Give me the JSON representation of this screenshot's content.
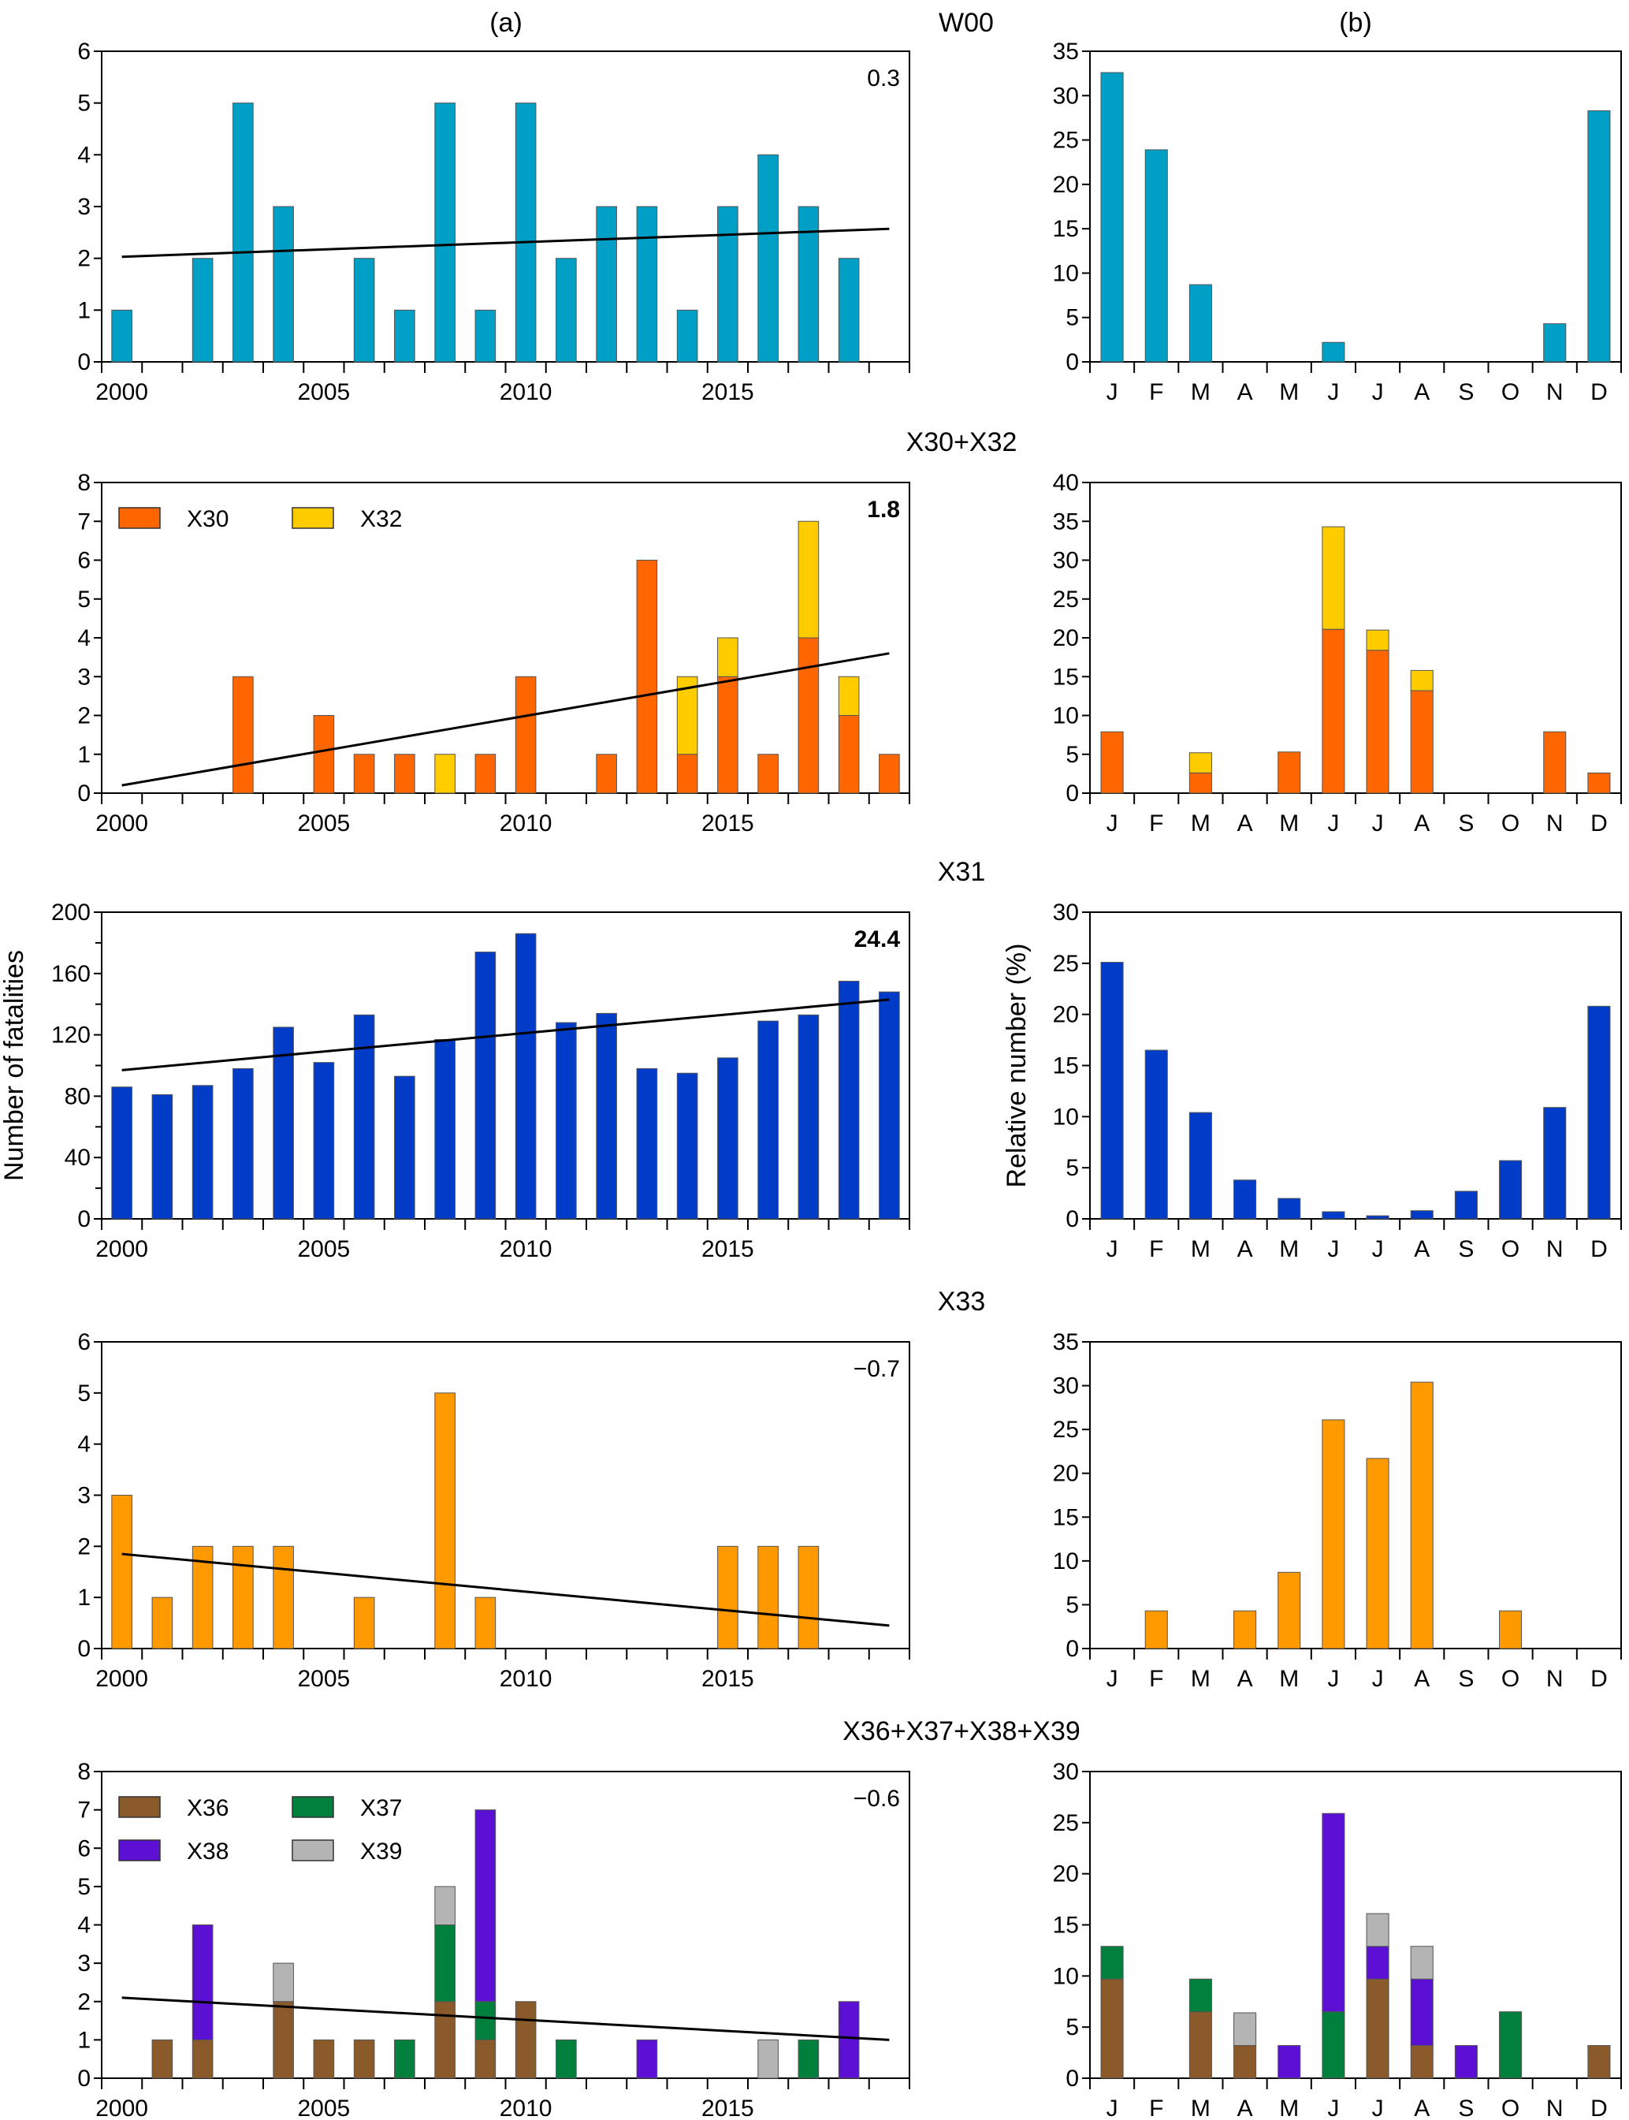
{
  "column_labels": {
    "left": "(a)",
    "right": "(b)"
  },
  "y_labels": {
    "left": "Number of fatalities",
    "right": "Relative number (%)"
  },
  "colors": {
    "W00": "#00A0C6",
    "X30": "#FF6600",
    "X32": "#FFCC00",
    "X31": "#003CC8",
    "X33": "#FF9900",
    "X36": "#8B5A2B",
    "X37": "#00803C",
    "X38": "#5C10D4",
    "X39": "#B4B4B4",
    "trend": "#000000"
  },
  "chart_data": [
    {
      "id": "W00-annual",
      "group": "W00",
      "type": "bar",
      "panel": "a",
      "title": "W00",
      "trend_label": "0.3",
      "trend_bold": false,
      "xlabel": "",
      "ylabel": "",
      "x": [
        2000,
        2001,
        2002,
        2003,
        2004,
        2005,
        2006,
        2007,
        2008,
        2009,
        2010,
        2011,
        2012,
        2013,
        2014,
        2015,
        2016,
        2017,
        2018,
        2019
      ],
      "x_ticks": [
        "2000",
        "2005",
        "2010",
        "2015"
      ],
      "ylim": [
        0,
        6
      ],
      "y_ticks": [
        0,
        1,
        2,
        3,
        4,
        5,
        6
      ],
      "series": [
        {
          "name": "W00",
          "values": [
            1,
            0,
            2,
            5,
            3,
            0,
            2,
            1,
            5,
            1,
            5,
            2,
            3,
            3,
            1,
            3,
            4,
            3,
            2,
            0
          ]
        }
      ],
      "trend": {
        "start": 2.03,
        "end": 2.57
      },
      "legend": null
    },
    {
      "id": "W00-monthly",
      "group": "W00",
      "type": "bar",
      "panel": "b",
      "categories": [
        "J",
        "F",
        "M",
        "A",
        "M",
        "J",
        "J",
        "A",
        "S",
        "O",
        "N",
        "D"
      ],
      "ylim": [
        0,
        35
      ],
      "y_ticks": [
        0,
        5,
        10,
        15,
        20,
        25,
        30,
        35
      ],
      "series": [
        {
          "name": "W00",
          "values": [
            32.6,
            23.9,
            8.7,
            0,
            0,
            2.2,
            0,
            0,
            0,
            0,
            4.3,
            28.3
          ]
        }
      ]
    },
    {
      "id": "X30X32-annual",
      "group": "X30+X32",
      "type": "bar",
      "stacked": true,
      "panel": "a",
      "title": "X30+X32",
      "trend_label": "1.8",
      "trend_bold": true,
      "x": [
        2000,
        2001,
        2002,
        2003,
        2004,
        2005,
        2006,
        2007,
        2008,
        2009,
        2010,
        2011,
        2012,
        2013,
        2014,
        2015,
        2016,
        2017,
        2018,
        2019
      ],
      "x_ticks": [
        "2000",
        "2005",
        "2010",
        "2015"
      ],
      "ylim": [
        0,
        8
      ],
      "y_ticks": [
        0,
        1,
        2,
        3,
        4,
        5,
        6,
        7,
        8
      ],
      "series": [
        {
          "name": "X30",
          "values": [
            0,
            0,
            0,
            3,
            0,
            2,
            1,
            1,
            0,
            1,
            3,
            0,
            1,
            6,
            1,
            3,
            1,
            4,
            2,
            1
          ]
        },
        {
          "name": "X32",
          "values": [
            0,
            0,
            0,
            0,
            0,
            0,
            0,
            0,
            1,
            0,
            0,
            0,
            0,
            0,
            2,
            1,
            0,
            3,
            1,
            0
          ]
        }
      ],
      "trend": {
        "start": 0.2,
        "end": 3.6
      },
      "legend": {
        "placement": "top-left",
        "entries": [
          "X30",
          "X32"
        ]
      }
    },
    {
      "id": "X30X32-monthly",
      "group": "X30+X32",
      "type": "bar",
      "stacked": true,
      "panel": "b",
      "categories": [
        "J",
        "F",
        "M",
        "A",
        "M",
        "J",
        "J",
        "A",
        "S",
        "O",
        "N",
        "D"
      ],
      "ylim": [
        0,
        40
      ],
      "y_ticks": [
        0,
        5,
        10,
        15,
        20,
        25,
        30,
        35,
        40
      ],
      "series": [
        {
          "name": "X30",
          "values": [
            7.9,
            0,
            2.6,
            0,
            5.3,
            21.1,
            18.4,
            13.2,
            0,
            0,
            7.9,
            2.6
          ]
        },
        {
          "name": "X32",
          "values": [
            0,
            0,
            2.6,
            0,
            0,
            13.2,
            2.6,
            2.6,
            0,
            0,
            0,
            0
          ]
        }
      ]
    },
    {
      "id": "X31-annual",
      "group": "X31",
      "type": "bar",
      "panel": "a",
      "title": "X31",
      "trend_label": "24.4",
      "trend_bold": true,
      "ylabel": "Number of fatalities",
      "x": [
        2000,
        2001,
        2002,
        2003,
        2004,
        2005,
        2006,
        2007,
        2008,
        2009,
        2010,
        2011,
        2012,
        2013,
        2014,
        2015,
        2016,
        2017,
        2018,
        2019
      ],
      "x_ticks": [
        "2000",
        "2005",
        "2010",
        "2015"
      ],
      "ylim": [
        0,
        200
      ],
      "y_ticks": [
        0,
        40,
        80,
        120,
        160,
        200
      ],
      "minor_step": 20,
      "series": [
        {
          "name": "X31",
          "values": [
            86,
            81,
            87,
            98,
            125,
            102,
            133,
            93,
            117,
            174,
            186,
            128,
            134,
            98,
            95,
            105,
            129,
            133,
            155,
            148
          ]
        }
      ],
      "trend": {
        "start": 97,
        "end": 143
      },
      "legend": null
    },
    {
      "id": "X31-monthly",
      "group": "X31",
      "type": "bar",
      "panel": "b",
      "ylabel": "Relative number (%)",
      "categories": [
        "J",
        "F",
        "M",
        "A",
        "M",
        "J",
        "J",
        "A",
        "S",
        "O",
        "N",
        "D"
      ],
      "ylim": [
        0,
        30
      ],
      "y_ticks": [
        0,
        5,
        10,
        15,
        20,
        25,
        30
      ],
      "series": [
        {
          "name": "X31",
          "values": [
            25.1,
            16.5,
            10.4,
            3.8,
            2.0,
            0.7,
            0.3,
            0.8,
            2.7,
            5.7,
            10.9,
            20.8
          ]
        }
      ]
    },
    {
      "id": "X33-annual",
      "group": "X33",
      "type": "bar",
      "panel": "a",
      "title": "X33",
      "trend_label": "−0.7",
      "trend_bold": false,
      "x": [
        2000,
        2001,
        2002,
        2003,
        2004,
        2005,
        2006,
        2007,
        2008,
        2009,
        2010,
        2011,
        2012,
        2013,
        2014,
        2015,
        2016,
        2017,
        2018,
        2019
      ],
      "x_ticks": [
        "2000",
        "2005",
        "2010",
        "2015"
      ],
      "ylim": [
        0,
        6
      ],
      "y_ticks": [
        0,
        1,
        2,
        3,
        4,
        5,
        6
      ],
      "series": [
        {
          "name": "X33",
          "values": [
            3,
            1,
            2,
            2,
            2,
            0,
            1,
            0,
            5,
            1,
            0,
            0,
            0,
            0,
            0,
            2,
            2,
            2,
            0,
            0
          ]
        }
      ],
      "trend": {
        "start": 1.85,
        "end": 0.45
      },
      "legend": null
    },
    {
      "id": "X33-monthly",
      "group": "X33",
      "type": "bar",
      "panel": "b",
      "categories": [
        "J",
        "F",
        "M",
        "A",
        "M",
        "J",
        "J",
        "A",
        "S",
        "O",
        "N",
        "D"
      ],
      "ylim": [
        0,
        35
      ],
      "y_ticks": [
        0,
        5,
        10,
        15,
        20,
        25,
        30,
        35
      ],
      "series": [
        {
          "name": "X33",
          "values": [
            0,
            4.3,
            0,
            4.3,
            8.7,
            26.1,
            21.7,
            30.4,
            0,
            4.3,
            0,
            0
          ]
        }
      ]
    },
    {
      "id": "X36-39-annual",
      "group": "X36+X37+X38+X39",
      "type": "bar",
      "stacked": true,
      "panel": "a",
      "title": "X36+X37+X38+X39",
      "trend_label": "−0.6",
      "trend_bold": false,
      "x": [
        2000,
        2001,
        2002,
        2003,
        2004,
        2005,
        2006,
        2007,
        2008,
        2009,
        2010,
        2011,
        2012,
        2013,
        2014,
        2015,
        2016,
        2017,
        2018,
        2019
      ],
      "x_ticks": [
        "2000",
        "2005",
        "2010",
        "2015"
      ],
      "ylim": [
        0,
        8
      ],
      "y_ticks": [
        0,
        1,
        2,
        3,
        4,
        5,
        6,
        7,
        8
      ],
      "series": [
        {
          "name": "X36",
          "values": [
            0,
            1,
            1,
            0,
            2,
            1,
            1,
            0,
            2,
            1,
            2,
            0,
            0,
            0,
            0,
            0,
            0,
            0,
            0,
            0
          ]
        },
        {
          "name": "X37",
          "values": [
            0,
            0,
            0,
            0,
            0,
            0,
            0,
            1,
            2,
            1,
            0,
            1,
            0,
            0,
            0,
            0,
            0,
            1,
            0,
            0
          ]
        },
        {
          "name": "X38",
          "values": [
            0,
            0,
            3,
            0,
            0,
            0,
            0,
            0,
            0,
            5,
            0,
            0,
            0,
            1,
            0,
            0,
            0,
            0,
            2,
            0
          ]
        },
        {
          "name": "X39",
          "values": [
            0,
            0,
            0,
            0,
            1,
            0,
            0,
            0,
            1,
            0,
            0,
            0,
            0,
            0,
            0,
            0,
            1,
            0,
            0,
            0
          ]
        }
      ],
      "trend": {
        "start": 2.1,
        "end": 1.0
      },
      "legend": {
        "placement": "top-left",
        "entries": [
          "X36",
          "X37",
          "X38",
          "X39"
        ]
      }
    },
    {
      "id": "X36-39-monthly",
      "group": "X36+X37+X38+X39",
      "type": "bar",
      "stacked": true,
      "panel": "b",
      "categories": [
        "J",
        "F",
        "M",
        "A",
        "M",
        "J",
        "J",
        "A",
        "S",
        "O",
        "N",
        "D"
      ],
      "ylim": [
        0,
        30
      ],
      "y_ticks": [
        0,
        5,
        10,
        15,
        20,
        25,
        30
      ],
      "series": [
        {
          "name": "X36",
          "values": [
            9.7,
            0,
            6.5,
            3.2,
            0,
            0,
            9.7,
            3.2,
            0,
            0,
            0,
            3.2
          ]
        },
        {
          "name": "X37",
          "values": [
            3.2,
            0,
            3.2,
            0,
            0,
            6.5,
            0,
            0,
            0,
            6.5,
            0,
            0
          ]
        },
        {
          "name": "X38",
          "values": [
            0,
            0,
            0,
            0,
            3.2,
            19.4,
            3.2,
            6.5,
            3.2,
            0,
            0,
            0
          ]
        },
        {
          "name": "X39",
          "values": [
            0,
            0,
            0,
            3.2,
            0,
            0,
            3.2,
            3.2,
            0,
            0,
            0,
            0
          ]
        }
      ]
    }
  ]
}
